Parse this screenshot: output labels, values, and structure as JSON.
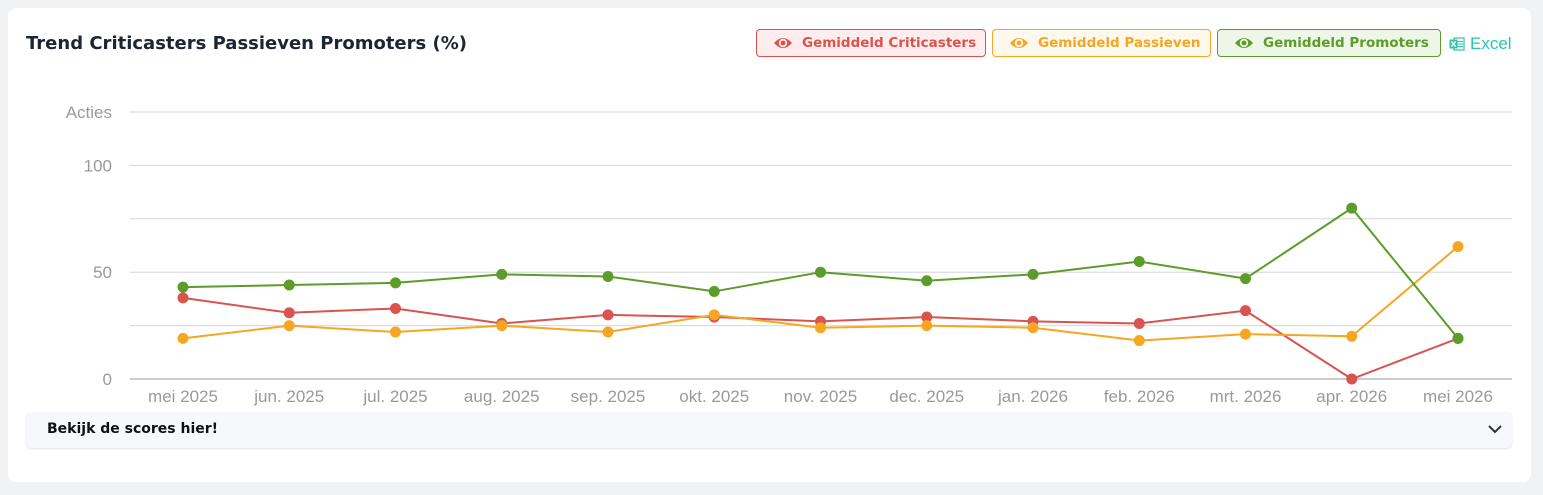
{
  "header": {
    "title": "Trend Criticasters Passieven Promoters (%)",
    "export_label": "Excel"
  },
  "legend": [
    {
      "label": "Gemiddeld Criticasters",
      "icon": "eye-icon",
      "color": "#d9534f"
    },
    {
      "label": "Gemiddeld Passieven",
      "icon": "eye-icon",
      "color": "#f5a623"
    },
    {
      "label": "Gemiddeld Promoters",
      "icon": "eye-icon",
      "color": "#5c9c2a"
    }
  ],
  "accordion": {
    "label": "Bekijk de scores hier!",
    "icon": "chevron-down-icon"
  },
  "chart_data": {
    "type": "line",
    "title": "Trend Criticasters Passieven Promoters (%)",
    "ylabel": "Acties",
    "xlabel": "",
    "categories": [
      "mei 2025",
      "jun. 2025",
      "jul. 2025",
      "aug. 2025",
      "sep. 2025",
      "okt. 2025",
      "nov. 2025",
      "dec. 2025",
      "jan. 2026",
      "feb. 2026",
      "mrt. 2026",
      "apr. 2026",
      "mei 2026"
    ],
    "ylim": [
      0,
      125
    ],
    "yticks": [
      0,
      50,
      100
    ],
    "grid": true,
    "legend_position": "top-right",
    "series": [
      {
        "name": "Gemiddeld Criticasters",
        "color": "#d9534f",
        "values": [
          38,
          31,
          33,
          26,
          30,
          29,
          27,
          29,
          27,
          26,
          32,
          0,
          19
        ]
      },
      {
        "name": "Gemiddeld Passieven",
        "color": "#f5a623",
        "values": [
          19,
          25,
          22,
          25,
          22,
          30,
          24,
          25,
          24,
          18,
          21,
          20,
          62
        ]
      },
      {
        "name": "Gemiddeld Promoters",
        "color": "#5c9c2a",
        "values": [
          43,
          44,
          45,
          49,
          48,
          41,
          50,
          46,
          49,
          55,
          47,
          80,
          19
        ]
      }
    ]
  }
}
